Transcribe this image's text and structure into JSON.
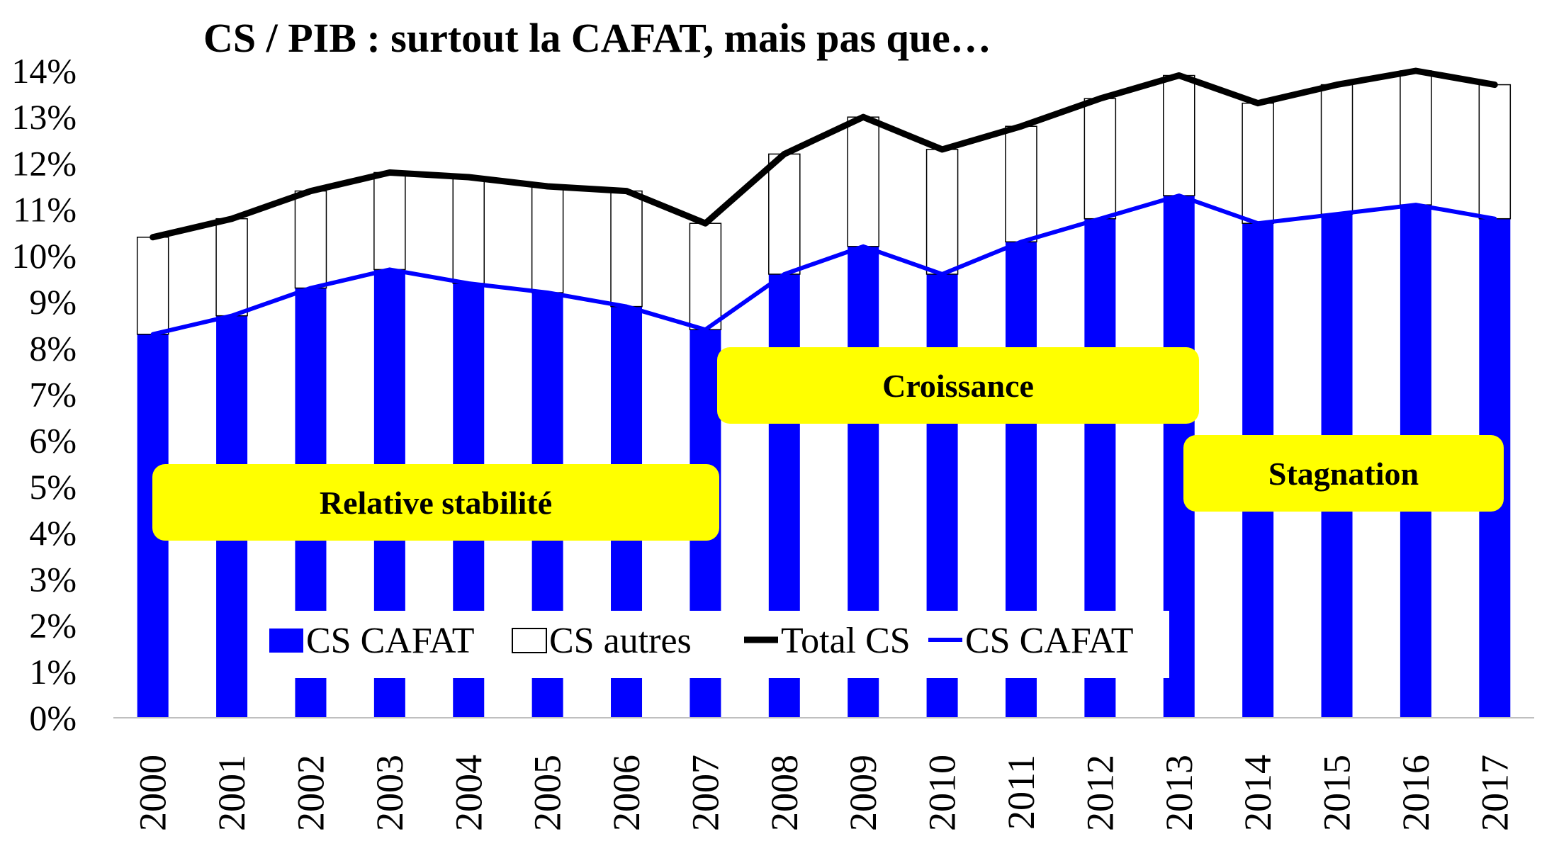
{
  "chart_data": {
    "type": "bar",
    "title": "CS / PIB : surtout la CAFAT, mais pas que…",
    "xlabel": "",
    "ylabel": "",
    "ylim": [
      0,
      14
    ],
    "y_tick_labels": [
      "0%",
      "1%",
      "2%",
      "3%",
      "4%",
      "5%",
      "6%",
      "7%",
      "8%",
      "9%",
      "10%",
      "11%",
      "12%",
      "13%",
      "14%"
    ],
    "categories": [
      "2000",
      "2001",
      "2002",
      "2003",
      "2004",
      "2005",
      "2006",
      "2007",
      "2008",
      "2009",
      "2010",
      "2011",
      "2012",
      "2013",
      "2014",
      "2015",
      "2016",
      "2017"
    ],
    "stacked": true,
    "series": [
      {
        "name": "CS CAFAT",
        "kind": "bar",
        "color": "#0000ff",
        "values": [
          8.3,
          8.7,
          9.3,
          9.7,
          9.4,
          9.2,
          8.9,
          8.4,
          9.6,
          10.2,
          9.6,
          10.3,
          10.8,
          11.3,
          10.7,
          10.9,
          11.1,
          10.8
        ]
      },
      {
        "name": "CS autres",
        "kind": "bar",
        "color": "#ffffff",
        "values": [
          2.1,
          2.1,
          2.1,
          2.1,
          2.3,
          2.3,
          2.5,
          2.3,
          2.6,
          2.8,
          2.7,
          2.5,
          2.6,
          2.6,
          2.6,
          2.8,
          2.9,
          2.9
        ]
      },
      {
        "name": "Total CS",
        "kind": "line",
        "color": "#000000",
        "values": [
          10.4,
          10.8,
          11.4,
          11.8,
          11.7,
          11.5,
          11.4,
          10.7,
          12.2,
          13.0,
          12.3,
          12.8,
          13.4,
          13.9,
          13.3,
          13.7,
          14.0,
          13.7
        ]
      },
      {
        "name": "CS CAFAT",
        "kind": "line",
        "color": "#0000ff",
        "values": [
          8.3,
          8.7,
          9.3,
          9.7,
          9.4,
          9.2,
          8.9,
          8.4,
          9.6,
          10.2,
          9.6,
          10.3,
          10.8,
          11.3,
          10.7,
          10.9,
          11.1,
          10.8
        ]
      }
    ],
    "legend": {
      "placement": "bottom-center",
      "labels": [
        "CS CAFAT",
        "CS autres",
        "Total CS",
        "CS CAFAT"
      ]
    },
    "grid": false,
    "annotations": [
      {
        "text": "Relative stabilité",
        "fill": "#ffff00"
      },
      {
        "text": "Croissance",
        "fill": "#ffff00"
      },
      {
        "text": "Stagnation",
        "fill": "#ffff00"
      }
    ]
  }
}
